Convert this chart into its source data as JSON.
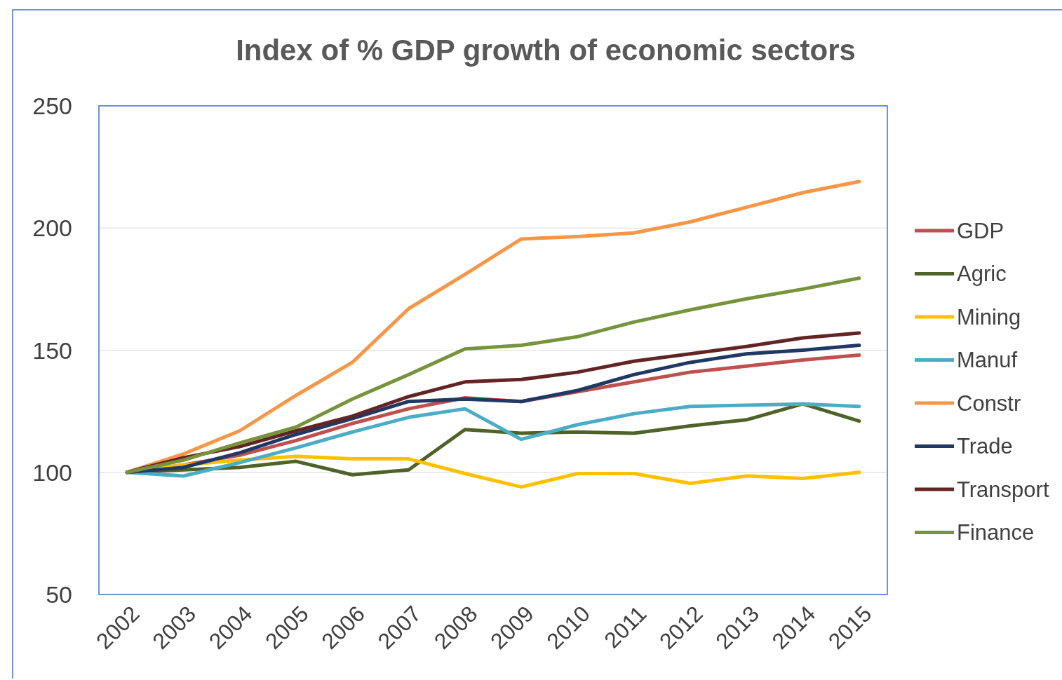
{
  "chart_data": {
    "type": "line",
    "title": "Index of % GDP growth of economic sectors",
    "categories": [
      "2002",
      "2003",
      "2004",
      "2005",
      "2006",
      "2007",
      "2008",
      "2009",
      "2010",
      "2011",
      "2012",
      "2013",
      "2014",
      "2015"
    ],
    "series": [
      {
        "name": "GDP",
        "color": "#c0504d",
        "values": [
          100,
          103,
          107,
          113,
          120,
          126,
          130.5,
          129,
          133,
          137,
          141,
          143.5,
          146,
          148
        ]
      },
      {
        "name": "Agric",
        "color": "#4f6228",
        "values": [
          100,
          101,
          102,
          104.5,
          99,
          101,
          117.5,
          116,
          116.5,
          116,
          119,
          121.5,
          128,
          121
        ]
      },
      {
        "name": "Mining",
        "color": "#ffc000",
        "values": [
          100,
          103,
          105,
          106.5,
          105.5,
          105.5,
          99.5,
          94,
          99.5,
          99.5,
          95.5,
          98.5,
          97.5,
          100
        ]
      },
      {
        "name": "Manuf",
        "color": "#4bacc6",
        "values": [
          100,
          98.5,
          104,
          110,
          116.5,
          122.5,
          126,
          113.5,
          119.5,
          124,
          127,
          127.5,
          128,
          127
        ]
      },
      {
        "name": "Constr",
        "color": "#f79646",
        "values": [
          100,
          107.5,
          117,
          131.5,
          145,
          167,
          181,
          195.5,
          196.5,
          198,
          202.5,
          208.5,
          214.5,
          219
        ]
      },
      {
        "name": "Trade",
        "color": "#1f3864",
        "values": [
          100,
          102,
          108,
          115.5,
          122,
          129,
          130,
          129,
          133.5,
          140,
          145,
          148.5,
          150,
          152
        ]
      },
      {
        "name": "Transport",
        "color": "#632523",
        "values": [
          100,
          106,
          110.5,
          117,
          123,
          131,
          137,
          138,
          141,
          145.5,
          148.5,
          151.5,
          155,
          157
        ]
      },
      {
        "name": "Finance",
        "color": "#77933c",
        "values": [
          100,
          105,
          112,
          118.5,
          130,
          140,
          150.5,
          152,
          155.5,
          161.5,
          166.5,
          171,
          175,
          179.5
        ]
      }
    ],
    "ylim": [
      50,
      250
    ],
    "yticks": [
      50,
      100,
      150,
      200,
      250
    ],
    "grid": "y",
    "legend": "right",
    "marker": "none",
    "line_style": "solid"
  }
}
